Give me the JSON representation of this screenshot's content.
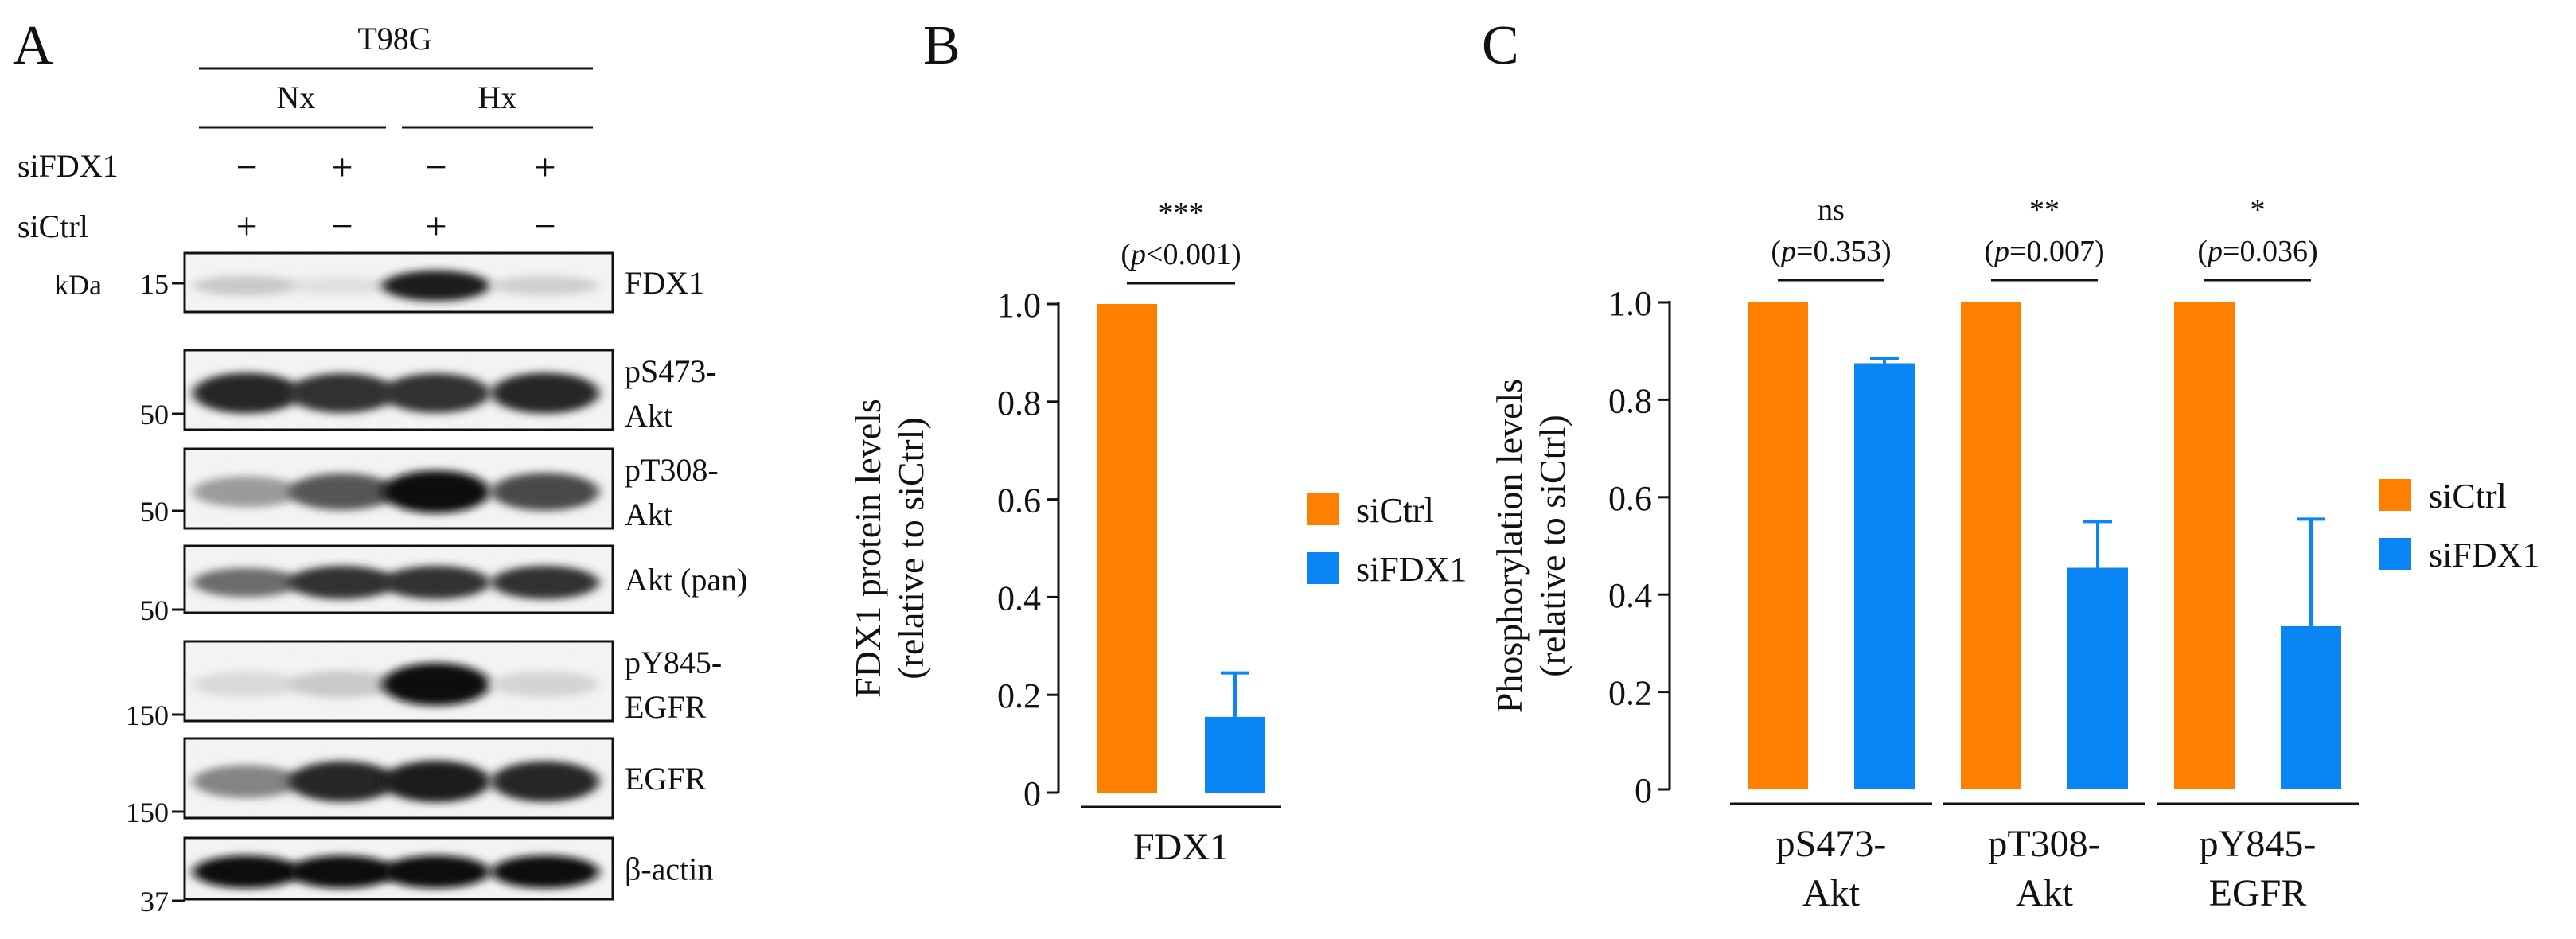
{
  "colors": {
    "siCtrl": "#FF8000",
    "siFDX1": "#0A85F5",
    "ink": "#111111"
  },
  "panel_a": {
    "label": "A",
    "cell_line": "T98G",
    "conditions": [
      "Nx",
      "Hx"
    ],
    "row_labels": [
      "siFDX1",
      "siCtrl"
    ],
    "sifdx1_signs": [
      "−",
      "+",
      "−",
      "+"
    ],
    "sictrl_signs": [
      "+",
      "−",
      "+",
      "−"
    ],
    "kda_label": "kDa",
    "blots": [
      {
        "label_lines": [
          "FDX1"
        ],
        "marker": "15",
        "band_intensity": [
          0.15,
          0.05,
          0.9,
          0.12
        ]
      },
      {
        "label_lines": [
          "pS473-",
          "Akt"
        ],
        "marker": "50",
        "band_intensity": [
          0.85,
          0.8,
          0.8,
          0.85
        ]
      },
      {
        "label_lines": [
          "pT308-",
          "Akt"
        ],
        "marker": "50",
        "band_intensity": [
          0.35,
          0.65,
          0.95,
          0.7
        ]
      },
      {
        "label_lines": [
          "Akt (pan)"
        ],
        "marker": "50",
        "band_intensity": [
          0.55,
          0.8,
          0.8,
          0.8
        ]
      },
      {
        "label_lines": [
          "pY845-",
          "EGFR"
        ],
        "marker": "150",
        "band_intensity": [
          0.08,
          0.15,
          0.95,
          0.1
        ]
      },
      {
        "label_lines": [
          "EGFR"
        ],
        "marker": "150",
        "band_intensity": [
          0.45,
          0.85,
          0.9,
          0.85
        ]
      },
      {
        "label_lines": [
          "β-actin"
        ],
        "marker": "37",
        "band_intensity": [
          0.95,
          0.95,
          0.95,
          0.95
        ]
      }
    ]
  },
  "panel_b": {
    "label": "B",
    "chart_data": {
      "type": "bar",
      "ylabel_lines": [
        "FDX1 protein levels",
        "(relative to siCtrl)"
      ],
      "ylim": [
        0,
        1.0
      ],
      "yticks": [
        "0",
        "0.2",
        "0.4",
        "0.6",
        "0.8",
        "1.0"
      ],
      "groups": [
        "FDX1"
      ],
      "series": [
        {
          "name": "siCtrl",
          "values": [
            1.0
          ],
          "errors": [
            0
          ]
        },
        {
          "name": "siFDX1",
          "values": [
            0.155
          ],
          "errors": [
            0.09
          ]
        }
      ],
      "significance": [
        {
          "stars": "***",
          "p_label": "p",
          "p_text": "<0.001)"
        }
      ],
      "legend": [
        "siCtrl",
        "siFDX1"
      ]
    }
  },
  "panel_c": {
    "label": "C",
    "chart_data": {
      "type": "bar",
      "ylabel_lines": [
        "Phosphorylation levels",
        "(relative to siCtrl)"
      ],
      "ylim": [
        0,
        1.0
      ],
      "yticks": [
        "0",
        "0.2",
        "0.4",
        "0.6",
        "0.8",
        "1.0"
      ],
      "groups": [
        [
          "pS473-",
          "Akt"
        ],
        [
          "pT308-",
          "Akt"
        ],
        [
          "pY845-",
          "EGFR"
        ]
      ],
      "series": [
        {
          "name": "siCtrl",
          "values": [
            1.0,
            1.0,
            1.0
          ],
          "errors": [
            0,
            0,
            0
          ]
        },
        {
          "name": "siFDX1",
          "values": [
            0.875,
            0.455,
            0.335
          ],
          "errors": [
            0.01,
            0.095,
            0.22
          ]
        }
      ],
      "significance": [
        {
          "stars": "ns",
          "p_label": "p",
          "p_text": "=0.353)"
        },
        {
          "stars": "**",
          "p_label": "p",
          "p_text": "=0.007)"
        },
        {
          "stars": "*",
          "p_label": "p",
          "p_text": "=0.036)"
        }
      ],
      "legend": [
        "siCtrl",
        "siFDX1"
      ]
    }
  }
}
